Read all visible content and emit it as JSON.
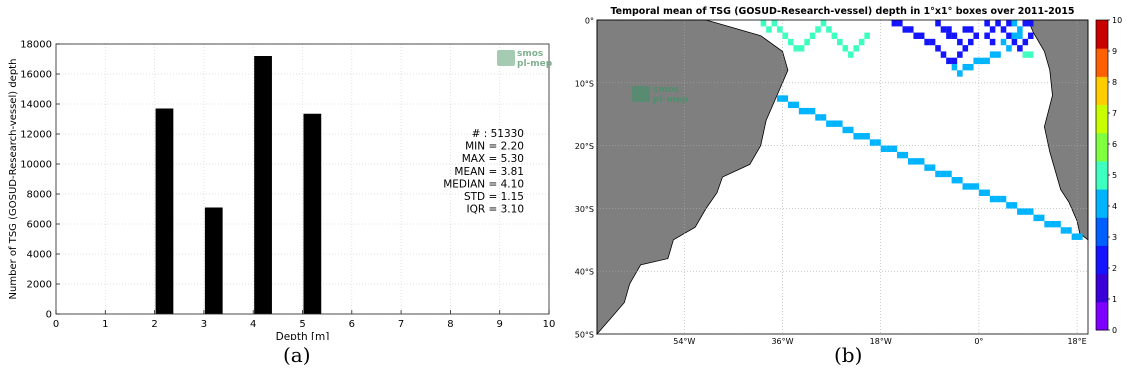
{
  "captions": {
    "a": "(a)",
    "b": "(b)"
  },
  "chart_data": [
    {
      "type": "bar",
      "title": "",
      "xlabel": "Depth [m]",
      "ylabel": "Number of TSG (GOSUD-Research-vessel) depth",
      "xlim": [
        0,
        10
      ],
      "ylim": [
        0,
        18000
      ],
      "xticks": [
        0,
        1,
        2,
        3,
        4,
        5,
        6,
        7,
        8,
        9,
        10
      ],
      "yticks": [
        0,
        2000,
        4000,
        6000,
        8000,
        10000,
        12000,
        14000,
        16000,
        18000
      ],
      "grid": true,
      "bars": [
        {
          "x": 2.2,
          "value": 13700
        },
        {
          "x": 3.2,
          "value": 7100
        },
        {
          "x": 4.2,
          "value": 17200
        },
        {
          "x": 5.2,
          "value": 13350
        }
      ],
      "logo": [
        "smos",
        "pl-mep"
      ],
      "stats": [
        "# : 51330",
        "MIN = 2.20",
        "MAX =  5.30",
        "MEAN = 3.81",
        "MEDIAN = 4.10",
        "STD = 1.15",
        "IQR = 3.10"
      ]
    },
    {
      "type": "heatmap",
      "title": "Temporal mean of TSG (GOSUD-Research-vessel) depth in 1°x1° boxes over 2011-2015",
      "lat_ticks": [
        "0°",
        "10°S",
        "20°S",
        "30°S",
        "40°S",
        "50°S"
      ],
      "lon_ticks": [
        "54°W",
        "36°W",
        "18°W",
        "0°",
        "18°E"
      ],
      "lat_range": [
        -50,
        0
      ],
      "lon_range": [
        -70,
        20
      ],
      "colorbar": {
        "min": 0,
        "max": 10,
        "ticks": [
          0,
          1,
          2,
          3,
          4,
          5,
          6,
          7,
          8,
          9,
          10
        ]
      },
      "logo": [
        "smos",
        "pl-mep"
      ],
      "land_color": "#7f7f7f"
    }
  ]
}
